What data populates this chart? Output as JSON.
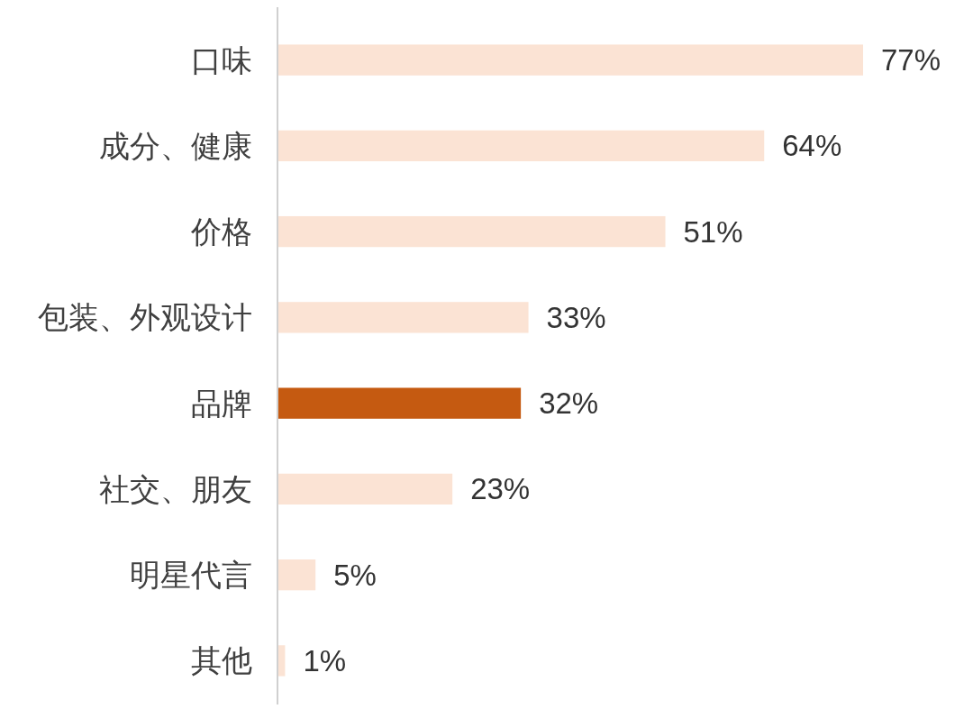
{
  "chart_data": {
    "type": "bar",
    "orientation": "horizontal",
    "categories": [
      "口味",
      "成分、健康",
      "价格",
      "包装、外观设计",
      "品牌",
      "社交、朋友",
      "明星代言",
      "其他"
    ],
    "values": [
      77,
      64,
      51,
      33,
      32,
      23,
      5,
      1
    ],
    "colors": [
      "#fbe3d4",
      "#fbe3d4",
      "#fbe3d4",
      "#fbe3d4",
      "#c55a11",
      "#fbe3d4",
      "#fbe3d4",
      "#fbe3d4"
    ],
    "value_labels": [
      "77%",
      "64%",
      "51%",
      "33%",
      "32%",
      "23%",
      "5%",
      "1%"
    ]
  }
}
